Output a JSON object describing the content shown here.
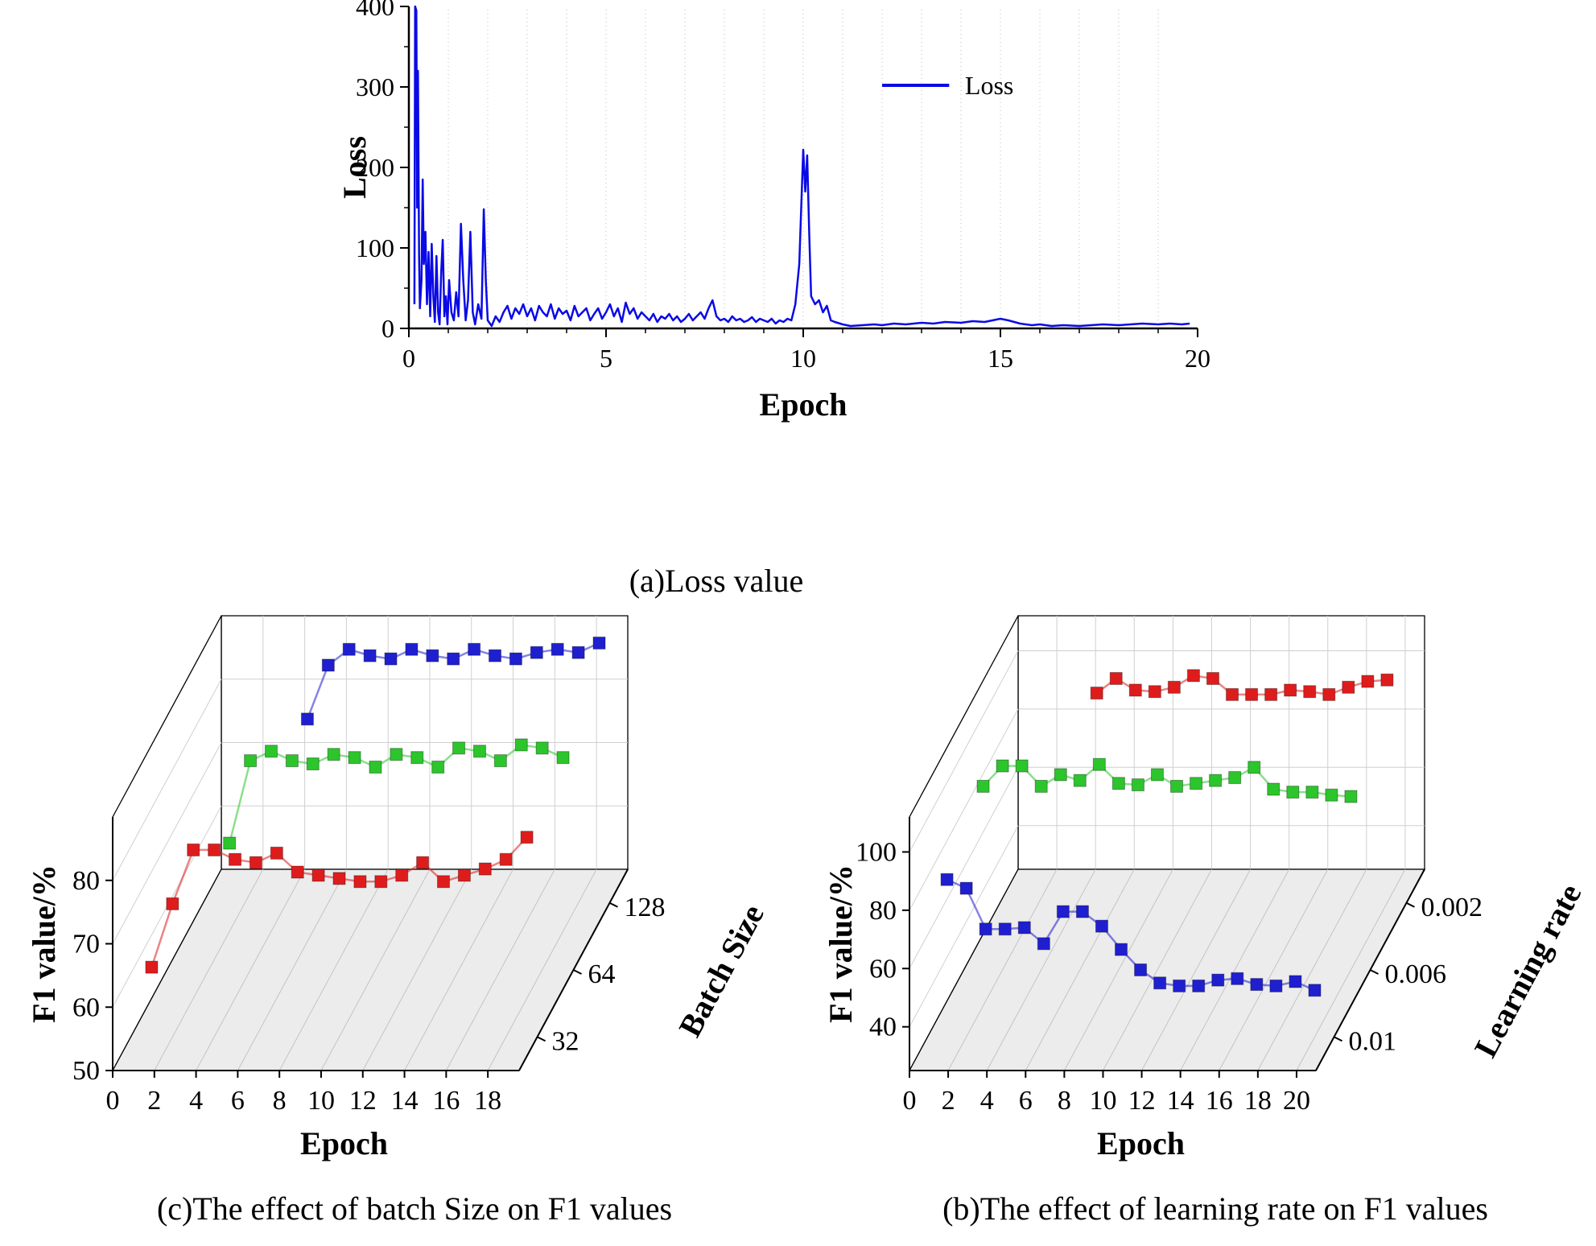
{
  "captions": {
    "a": "(a)Loss value",
    "c": "(c)The effect of batch Size on F1 values",
    "b": "(b)The effect of learning rate on F1 values"
  },
  "chart_data": [
    {
      "id": "loss",
      "type": "line",
      "xlabel": "Epoch",
      "ylabel": "Loss",
      "xlim": [
        0,
        20
      ],
      "ylim": [
        0,
        400
      ],
      "xticks": [
        0,
        5,
        10,
        15,
        20
      ],
      "yticks": [
        0,
        100,
        200,
        300,
        400
      ],
      "grid": "dotted-vertical",
      "legend_position": "top-right-inside",
      "series": [
        {
          "name": "Loss",
          "color": "#0a0ae6",
          "points": [
            [
              0.14,
              30
            ],
            [
              0.16,
              400
            ],
            [
              0.19,
              395
            ],
            [
              0.21,
              150
            ],
            [
              0.23,
              320
            ],
            [
              0.26,
              90
            ],
            [
              0.28,
              25
            ],
            [
              0.32,
              60
            ],
            [
              0.35,
              185
            ],
            [
              0.38,
              80
            ],
            [
              0.42,
              120
            ],
            [
              0.46,
              30
            ],
            [
              0.5,
              95
            ],
            [
              0.54,
              15
            ],
            [
              0.58,
              105
            ],
            [
              0.62,
              40
            ],
            [
              0.66,
              8
            ],
            [
              0.7,
              90
            ],
            [
              0.74,
              20
            ],
            [
              0.78,
              5
            ],
            [
              0.82,
              70
            ],
            [
              0.86,
              110
            ],
            [
              0.9,
              15
            ],
            [
              0.94,
              40
            ],
            [
              0.98,
              5
            ],
            [
              1.02,
              60
            ],
            [
              1.08,
              20
            ],
            [
              1.14,
              10
            ],
            [
              1.2,
              45
            ],
            [
              1.26,
              15
            ],
            [
              1.32,
              130
            ],
            [
              1.38,
              60
            ],
            [
              1.44,
              10
            ],
            [
              1.5,
              35
            ],
            [
              1.56,
              120
            ],
            [
              1.62,
              20
            ],
            [
              1.68,
              5
            ],
            [
              1.76,
              30
            ],
            [
              1.84,
              12
            ],
            [
              1.9,
              148
            ],
            [
              1.95,
              60
            ],
            [
              2.0,
              10
            ],
            [
              2.1,
              3
            ],
            [
              2.2,
              15
            ],
            [
              2.3,
              8
            ],
            [
              2.4,
              20
            ],
            [
              2.5,
              28
            ],
            [
              2.6,
              12
            ],
            [
              2.7,
              25
            ],
            [
              2.8,
              18
            ],
            [
              2.9,
              30
            ],
            [
              3.0,
              15
            ],
            [
              3.1,
              25
            ],
            [
              3.2,
              10
            ],
            [
              3.3,
              28
            ],
            [
              3.4,
              20
            ],
            [
              3.5,
              15
            ],
            [
              3.6,
              30
            ],
            [
              3.7,
              12
            ],
            [
              3.8,
              25
            ],
            [
              3.9,
              18
            ],
            [
              4.0,
              22
            ],
            [
              4.1,
              10
            ],
            [
              4.2,
              28
            ],
            [
              4.3,
              15
            ],
            [
              4.4,
              20
            ],
            [
              4.5,
              25
            ],
            [
              4.6,
              10
            ],
            [
              4.7,
              18
            ],
            [
              4.8,
              25
            ],
            [
              4.9,
              12
            ],
            [
              5.0,
              20
            ],
            [
              5.1,
              30
            ],
            [
              5.2,
              15
            ],
            [
              5.3,
              25
            ],
            [
              5.4,
              8
            ],
            [
              5.5,
              32
            ],
            [
              5.6,
              18
            ],
            [
              5.7,
              25
            ],
            [
              5.8,
              12
            ],
            [
              5.9,
              20
            ],
            [
              6.0,
              15
            ],
            [
              6.1,
              10
            ],
            [
              6.2,
              18
            ],
            [
              6.3,
              8
            ],
            [
              6.4,
              15
            ],
            [
              6.5,
              12
            ],
            [
              6.6,
              18
            ],
            [
              6.7,
              10
            ],
            [
              6.8,
              15
            ],
            [
              6.9,
              8
            ],
            [
              7.0,
              12
            ],
            [
              7.1,
              18
            ],
            [
              7.2,
              10
            ],
            [
              7.3,
              15
            ],
            [
              7.4,
              20
            ],
            [
              7.5,
              12
            ],
            [
              7.6,
              25
            ],
            [
              7.7,
              35
            ],
            [
              7.8,
              15
            ],
            [
              7.9,
              10
            ],
            [
              8.0,
              12
            ],
            [
              8.1,
              8
            ],
            [
              8.2,
              15
            ],
            [
              8.3,
              10
            ],
            [
              8.4,
              12
            ],
            [
              8.5,
              8
            ],
            [
              8.6,
              10
            ],
            [
              8.7,
              14
            ],
            [
              8.8,
              8
            ],
            [
              8.9,
              12
            ],
            [
              9.0,
              10
            ],
            [
              9.1,
              8
            ],
            [
              9.2,
              12
            ],
            [
              9.3,
              6
            ],
            [
              9.4,
              10
            ],
            [
              9.5,
              8
            ],
            [
              9.6,
              12
            ],
            [
              9.7,
              10
            ],
            [
              9.8,
              30
            ],
            [
              9.9,
              80
            ],
            [
              9.95,
              150
            ],
            [
              10.0,
              222
            ],
            [
              10.05,
              170
            ],
            [
              10.1,
              215
            ],
            [
              10.15,
              120
            ],
            [
              10.2,
              40
            ],
            [
              10.3,
              30
            ],
            [
              10.4,
              35
            ],
            [
              10.5,
              20
            ],
            [
              10.6,
              28
            ],
            [
              10.7,
              10
            ],
            [
              10.8,
              8
            ],
            [
              11.0,
              5
            ],
            [
              11.2,
              3
            ],
            [
              11.5,
              4
            ],
            [
              11.8,
              5
            ],
            [
              12.0,
              4
            ],
            [
              12.3,
              6
            ],
            [
              12.6,
              5
            ],
            [
              13.0,
              7
            ],
            [
              13.3,
              6
            ],
            [
              13.6,
              8
            ],
            [
              14.0,
              7
            ],
            [
              14.3,
              9
            ],
            [
              14.6,
              8
            ],
            [
              15.0,
              12
            ],
            [
              15.2,
              10
            ],
            [
              15.5,
              6
            ],
            [
              15.8,
              4
            ],
            [
              16.0,
              5
            ],
            [
              16.3,
              3
            ],
            [
              16.6,
              4
            ],
            [
              17.0,
              3
            ],
            [
              17.3,
              4
            ],
            [
              17.6,
              5
            ],
            [
              18.0,
              4
            ],
            [
              18.3,
              5
            ],
            [
              18.6,
              6
            ],
            [
              19.0,
              5
            ],
            [
              19.3,
              6
            ],
            [
              19.6,
              5
            ],
            [
              19.8,
              6
            ]
          ]
        }
      ]
    },
    {
      "id": "batch",
      "type": "scatter3d",
      "xlabel": "Epoch",
      "zlabel": "F1 value/%",
      "dlabel": "Batch Size",
      "xlim": [
        0,
        19.5
      ],
      "zlim": [
        50,
        90
      ],
      "xticks": [
        0,
        2,
        4,
        6,
        8,
        10,
        12,
        14,
        16,
        18
      ],
      "zticks": [
        50,
        60,
        70,
        80
      ],
      "dticks": [
        {
          "label": "32",
          "f": 0.167
        },
        {
          "label": "64",
          "f": 0.5
        },
        {
          "label": "128",
          "f": 0.833
        }
      ],
      "series": [
        {
          "name": "32",
          "color": "#df1c1c",
          "depth": 0.167,
          "start_epoch": 1,
          "values": [
            61,
            71,
            79.5,
            79.5,
            78,
            77.5,
            79,
            76,
            75.5,
            75,
            74.5,
            74.5,
            75.5,
            77.5,
            74.5,
            75.5,
            76.5,
            78,
            81.5
          ]
        },
        {
          "name": "64",
          "color": "#2cc52c",
          "depth": 0.5,
          "start_epoch": 3,
          "values": [
            70,
            83,
            84.5,
            83,
            82.5,
            84,
            83.5,
            82,
            84,
            83.5,
            82,
            85,
            84.5,
            83,
            85.5,
            85,
            83.5
          ]
        },
        {
          "name": "128",
          "color": "#1f1fd0",
          "depth": 0.833,
          "start_epoch": 5,
          "values": [
            79,
            87.5,
            90,
            89,
            88.5,
            90,
            89,
            88.5,
            90,
            89,
            88.5,
            89.5,
            90,
            89.5,
            91
          ]
        }
      ]
    },
    {
      "id": "lr",
      "type": "scatter3d",
      "xlabel": "Epoch",
      "zlabel": "F1 value/%",
      "dlabel": "Learning rate",
      "xlim": [
        0,
        21
      ],
      "zlim": [
        25,
        112
      ],
      "xticks": [
        0,
        2,
        4,
        6,
        8,
        10,
        12,
        14,
        16,
        18,
        20
      ],
      "zticks": [
        40,
        60,
        80,
        100
      ],
      "dticks": [
        {
          "label": "0.01",
          "f": 0.167
        },
        {
          "label": "0.006",
          "f": 0.5
        },
        {
          "label": "0.002",
          "f": 0.833
        }
      ],
      "series": [
        {
          "name": "0.01",
          "color": "#1f1fd0",
          "depth": 0.167,
          "start_epoch": 1,
          "values": [
            79,
            76,
            62,
            62,
            62.5,
            57,
            68,
            68,
            63,
            55,
            48,
            43.5,
            42.5,
            42.5,
            44.5,
            45,
            43,
            42.5,
            44,
            41
          ]
        },
        {
          "name": "0.006",
          "color": "#2cc52c",
          "depth": 0.5,
          "start_epoch": 1,
          "values": [
            88,
            95,
            95,
            88,
            92,
            90,
            95.5,
            89,
            88.5,
            92,
            88,
            89,
            90,
            91,
            94.5,
            87,
            86,
            86,
            85,
            84.5
          ]
        },
        {
          "name": "0.002",
          "color": "#df1c1c",
          "depth": 0.833,
          "start_epoch": 5,
          "values": [
            97,
            102,
            98,
            97.5,
            99,
            103,
            102,
            96.5,
            96.5,
            96.5,
            98,
            97.5,
            96.5,
            99,
            101,
            101.5
          ]
        }
      ]
    }
  ]
}
